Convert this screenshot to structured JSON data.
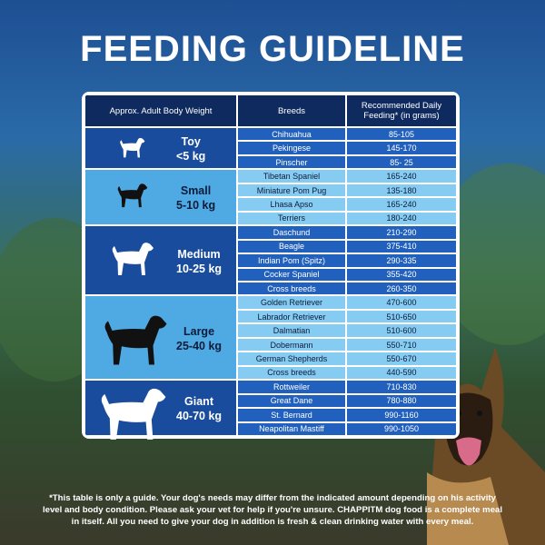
{
  "title": "FEEDING GUIDELINE",
  "table": {
    "headers": [
      "Approx. Adult Body Weight",
      "Breeds",
      "Recommended Daily Feeding* (in grams)"
    ],
    "groups": [
      {
        "size": "Toy",
        "weight": "<5 kg",
        "rows": [
          {
            "breed": "Chihuahua",
            "feeding": "85-105"
          },
          {
            "breed": "Pekingese",
            "feeding": "145-170"
          },
          {
            "breed": "Pinscher",
            "feeding": "85- 25"
          }
        ]
      },
      {
        "size": "Small",
        "weight": "5-10 kg",
        "rows": [
          {
            "breed": "Tibetan Spaniel",
            "feeding": "165-240"
          },
          {
            "breed": "Miniature Pom Pug",
            "feeding": "135-180"
          },
          {
            "breed": "Lhasa Apso",
            "feeding": "165-240"
          },
          {
            "breed": "Terriers",
            "feeding": "180-240"
          }
        ]
      },
      {
        "size": "Medium",
        "weight": "10-25 kg",
        "rows": [
          {
            "breed": "Daschund",
            "feeding": "210-290"
          },
          {
            "breed": "Beagle",
            "feeding": "375-410"
          },
          {
            "breed": "Indian Pom (Spitz)",
            "feeding": "290-335"
          },
          {
            "breed": "Cocker Spaniel",
            "feeding": "355-420"
          },
          {
            "breed": "Cross breeds",
            "feeding": "260-350"
          }
        ]
      },
      {
        "size": "Large",
        "weight": "25-40 kg",
        "rows": [
          {
            "breed": "Golden Retriever",
            "feeding": "470-600"
          },
          {
            "breed": "Labrador Retriever",
            "feeding": "510-650"
          },
          {
            "breed": "Dalmatian",
            "feeding": "510-600"
          },
          {
            "breed": "Dobermann",
            "feeding": "550-710"
          },
          {
            "breed": "German Shepherds",
            "feeding": "550-670"
          },
          {
            "breed": "Cross breeds",
            "feeding": "440-590"
          }
        ]
      },
      {
        "size": "Giant",
        "weight": "40-70 kg",
        "rows": [
          {
            "breed": "Rottweiler",
            "feeding": "710-830"
          },
          {
            "breed": "Great Dane",
            "feeding": "780-880"
          },
          {
            "breed": "St. Bernard",
            "feeding": "990-1160"
          },
          {
            "breed": "Neapolitan Mastiff",
            "feeding": "990-1050"
          }
        ]
      }
    ]
  },
  "footnote": [
    "*This table is only a guide. Your dog's needs may differ from the indicated amount depending on his activity",
    "level and body condition. Please ask your vet for help if you're unsure. CHAPPITM dog food is a complete meal",
    "in itself. All you need to give your dog in addition is fresh & clean drinking water with every meal."
  ]
}
